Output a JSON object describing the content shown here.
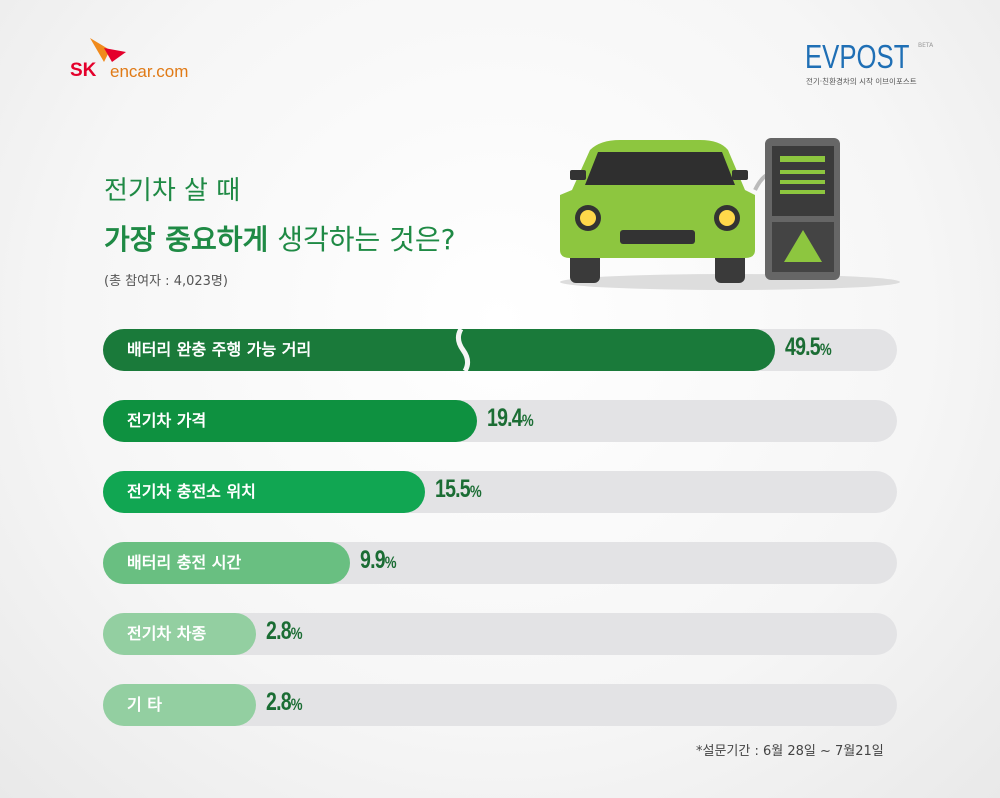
{
  "header": {
    "sk_logo": "SK",
    "encar_logo": "encar.com",
    "evpost_logo": "EVPOST",
    "evpost_beta": "BETA",
    "evpost_tagline": "전기·친환경차의 시작 이브이포스트"
  },
  "title": {
    "line1": "전기차 살 때",
    "line2_bold": "가장 중요하게",
    "line2_rest": " 생각하는 것은?",
    "participants": "(총 참여자 : 4,023명)"
  },
  "footer": {
    "survey_period": "*설문기간 : 6월 28일 ~ 7월21일"
  },
  "chart_data": {
    "type": "bar",
    "orientation": "horizontal",
    "title": "전기차 살 때 가장 중요하게 생각하는 것은?",
    "unit": "%",
    "categories": [
      "배터리 완충 주행 가능 거리",
      "전기차 가격",
      "전기차 충전소 위치",
      "배터리 충전 시간",
      "전기차 차종",
      "기 타"
    ],
    "values": [
      49.5,
      19.4,
      15.5,
      9.9,
      2.8,
      2.8
    ],
    "value_labels": [
      "49.5",
      "19.4",
      "15.5",
      "9.9",
      "2.8",
      "2.8"
    ],
    "colors": [
      "#1a7a3a",
      "#0e9140",
      "#11a652",
      "#69bf81",
      "#93cfa1",
      "#93cfa1"
    ],
    "axis_break_on_first_bar": true
  }
}
